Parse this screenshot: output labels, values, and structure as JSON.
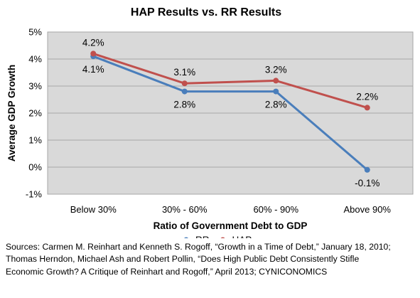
{
  "chart_data": {
    "type": "line",
    "title": "HAP Results vs. RR Results",
    "xlabel": "Ratio of Government Debt to GDP",
    "ylabel": "Average GDP Growth",
    "categories": [
      "Below 30%",
      "30% - 60%",
      "60% - 90%",
      "Above 90%"
    ],
    "ylim": [
      -1,
      5
    ],
    "yticks": [
      -1,
      0,
      1,
      2,
      3,
      4,
      5
    ],
    "ytick_labels": [
      "-1%",
      "0%",
      "1%",
      "2%",
      "3%",
      "4%",
      "5%"
    ],
    "grid": true,
    "legend_position": "bottom",
    "plot_background": "#d9d9d9",
    "series": [
      {
        "name": "RR",
        "color": "#4a7ebb",
        "values": [
          4.1,
          2.8,
          2.8,
          -0.1
        ],
        "labels": [
          "4.1%",
          "2.8%",
          "2.8%",
          "-0.1%"
        ]
      },
      {
        "name": "HAP",
        "color": "#c0504d",
        "values": [
          4.2,
          3.1,
          3.2,
          2.2
        ],
        "labels": [
          "4.2%",
          "3.1%",
          "3.2%",
          "2.2%"
        ]
      }
    ]
  },
  "sources": {
    "lines": [
      "Sources:  Carmen M. Reinhart and Kenneth S. Rogoff, “Growth in a Time of Debt,” January 18, 2010;",
      "Thomas Herndon, Michael Ash and Robert Pollin, “Does High Public Debt Consistently Stifle",
      "Economic Growth? A Critique of Reinhart and Rogoff,” April 2013; CYNICONOMICS"
    ]
  }
}
